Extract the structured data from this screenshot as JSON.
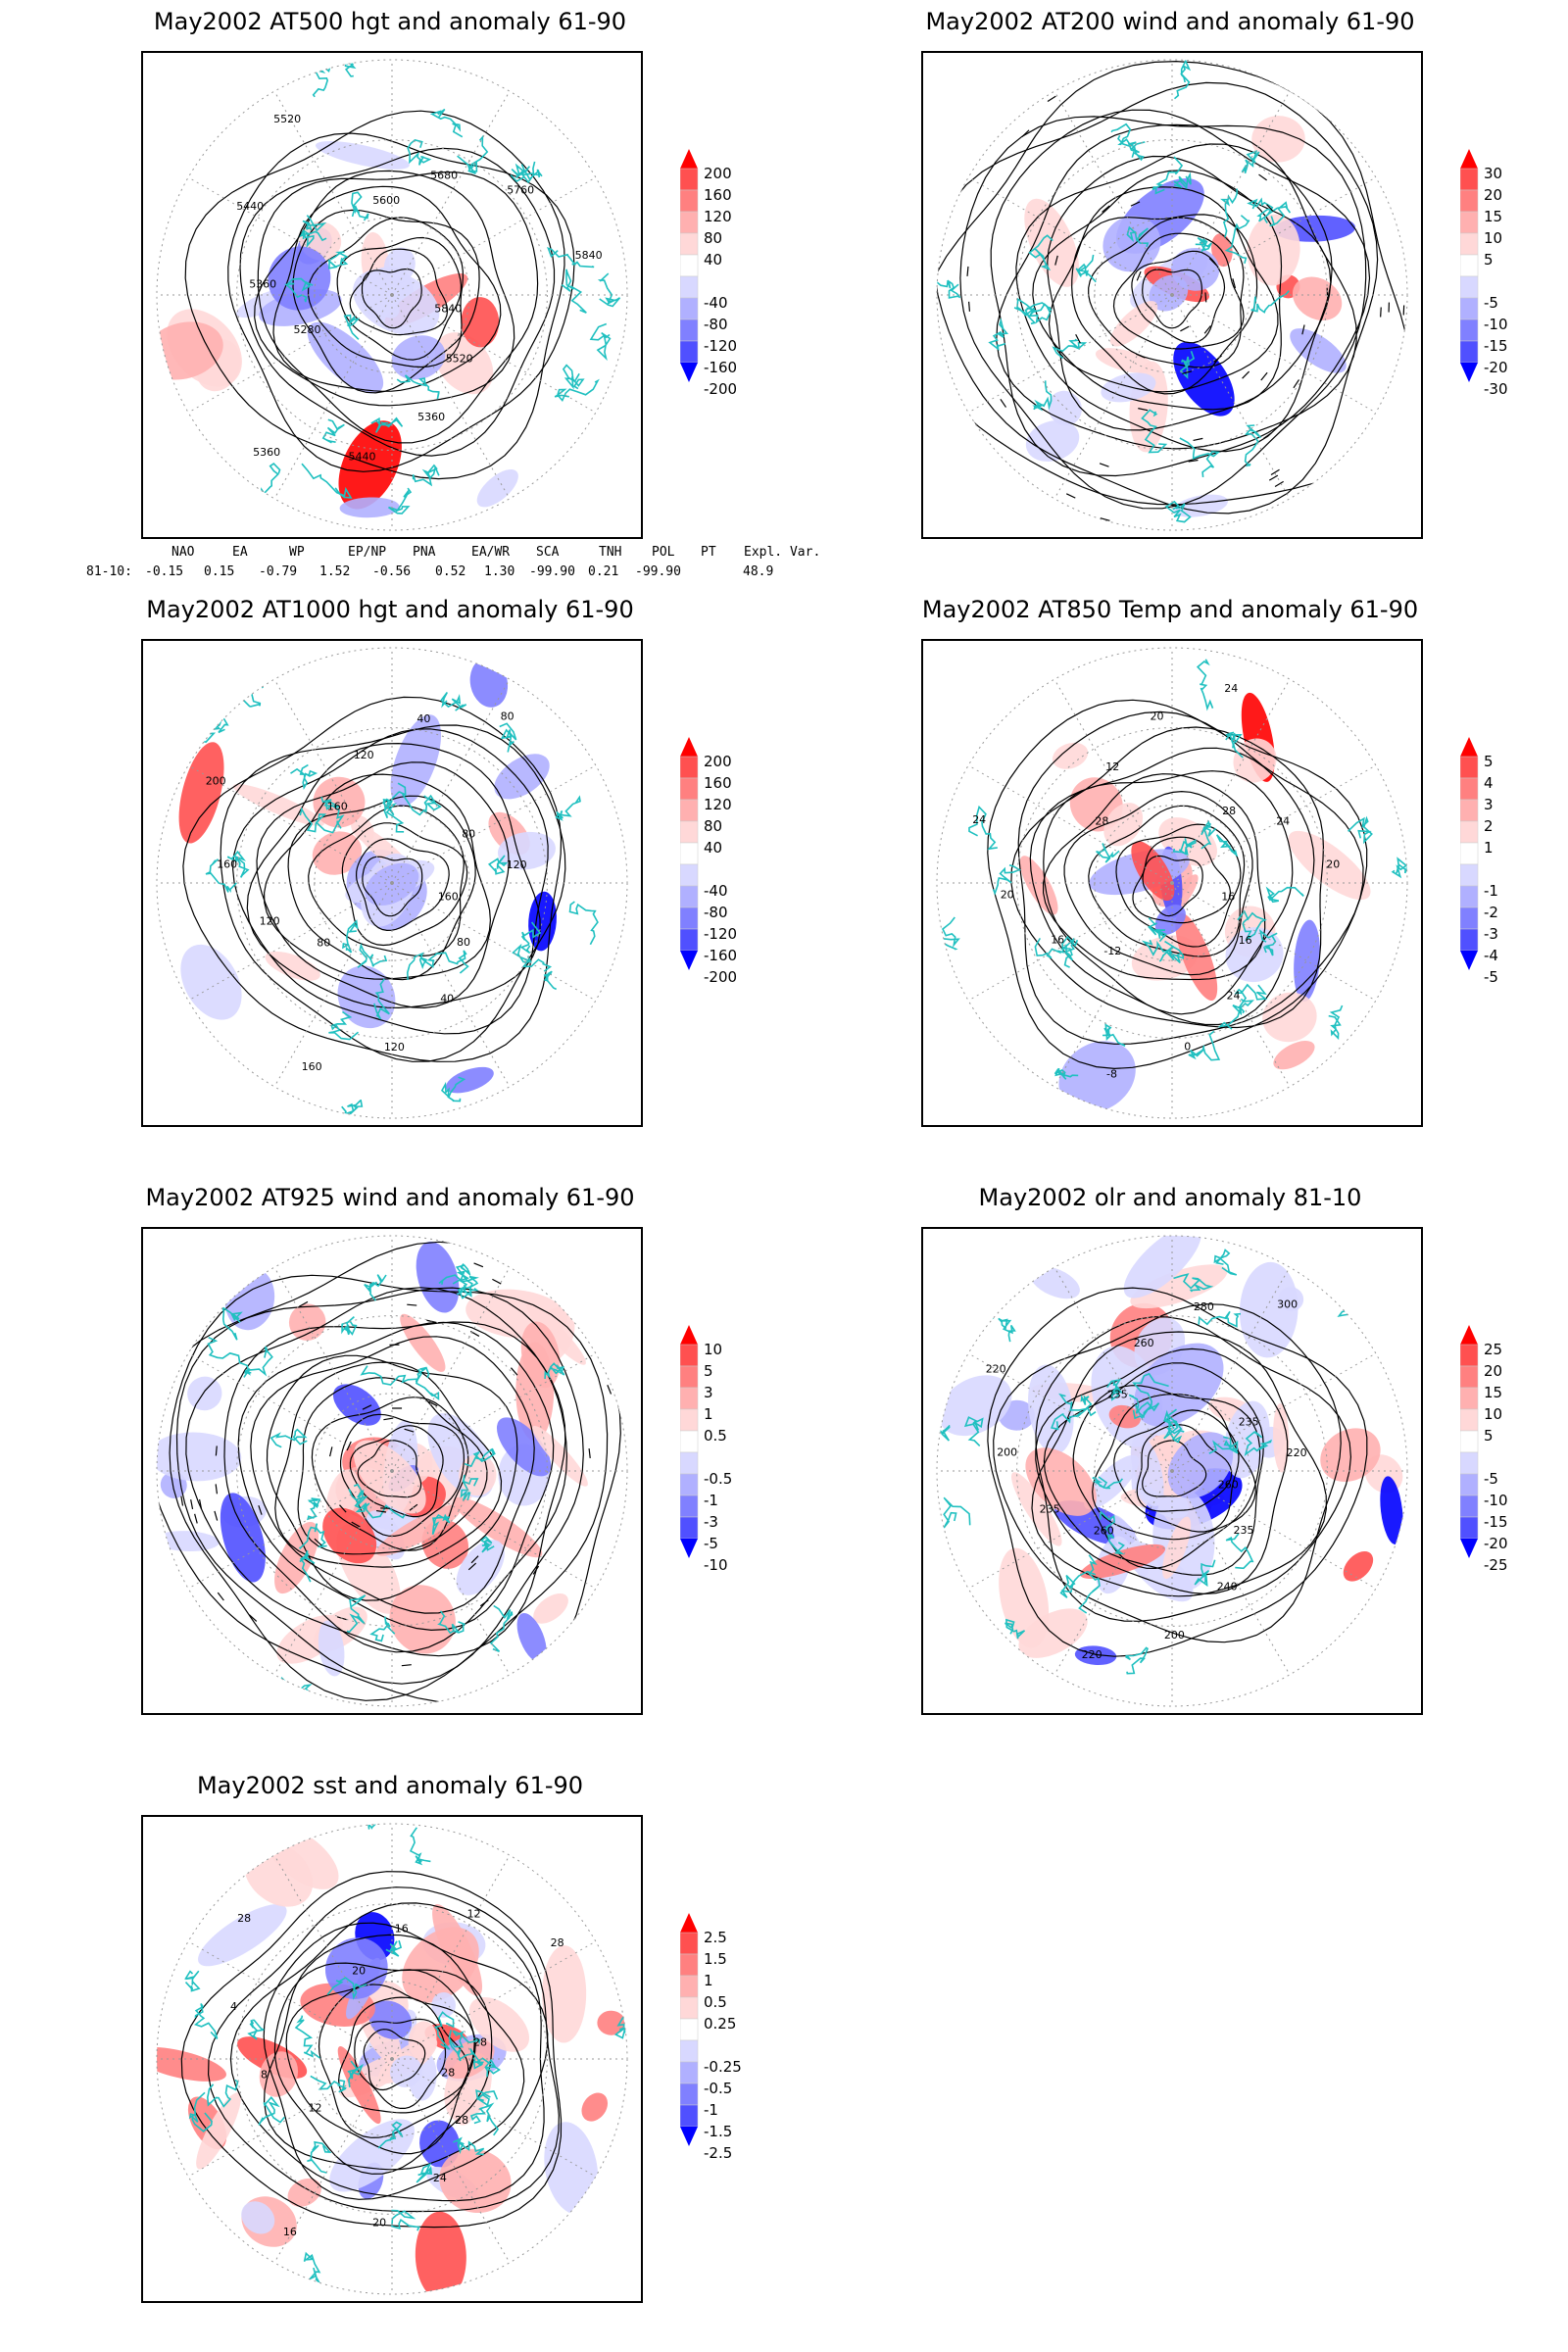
{
  "panels": [
    {
      "id": "at500",
      "title": "May2002 AT500 hgt and anomaly 61-90",
      "colorbar": [
        "200",
        "160",
        "120",
        "80",
        "40",
        "-40",
        "-80",
        "-120",
        "-160",
        "-200"
      ],
      "contour_labels": [
        "5840",
        "5520",
        "5360",
        "5440",
        "5360",
        "5280",
        "5360",
        "5440",
        "5520",
        "5600",
        "5680",
        "5760",
        "5840"
      ]
    },
    {
      "id": "at200",
      "title": "May2002 AT200 wind and anomaly 61-90",
      "colorbar": [
        "30",
        "20",
        "15",
        "10",
        "5",
        "-5",
        "-10",
        "-15",
        "-20",
        "-30"
      ],
      "contour_labels": []
    },
    {
      "id": "at1000",
      "title": "May2002 AT1000 hgt and anomaly 61-90",
      "colorbar": [
        "200",
        "160",
        "120",
        "80",
        "40",
        "-40",
        "-80",
        "-120",
        "-160",
        "-200"
      ],
      "contour_labels": [
        "160",
        "80",
        "40",
        "120",
        "160",
        "80",
        "120",
        "160",
        "200",
        "160",
        "120",
        "40",
        "80",
        "80",
        "120"
      ]
    },
    {
      "id": "at850",
      "title": "May2002 AT850 Temp and anomaly 61-90",
      "colorbar": [
        "5",
        "4",
        "3",
        "2",
        "1",
        "-1",
        "-2",
        "-3",
        "-4",
        "-5"
      ],
      "contour_labels": [
        "16",
        "16",
        "24",
        "0",
        "-8",
        "-12",
        "16",
        "20",
        "24",
        "28",
        "12",
        "20",
        "24",
        "28",
        "24",
        "20"
      ]
    },
    {
      "id": "at925",
      "title": "May2002 AT925 wind and anomaly 61-90",
      "colorbar": [
        "10",
        "5",
        "3",
        "1",
        "0.5",
        "-0.5",
        "-1",
        "-3",
        "-5",
        "-10"
      ],
      "contour_labels": []
    },
    {
      "id": "olr",
      "title": "May2002 olr and anomaly 81-10",
      "colorbar": [
        "25",
        "20",
        "15",
        "10",
        "5",
        "-5",
        "-10",
        "-15",
        "-20",
        "-25"
      ],
      "contour_labels": [
        "260",
        "235",
        "240",
        "200",
        "220",
        "260",
        "235",
        "200",
        "220",
        "235",
        "260",
        "280",
        "300",
        "235",
        "220"
      ]
    },
    {
      "id": "sst",
      "title": "May2002 sst and anomaly 61-90",
      "colorbar": [
        "2.5",
        "1.5",
        "1",
        "0.5",
        "0.25",
        "-0.25",
        "-0.5",
        "-1",
        "-1.5",
        "-2.5"
      ],
      "contour_labels": [
        "28",
        "28",
        "24",
        "20",
        "16",
        "12",
        "8",
        "4",
        "28",
        "20",
        "16",
        "12",
        "28",
        "28"
      ]
    }
  ],
  "teleconnection": {
    "headers": [
      "NAO",
      "EA",
      "WP",
      "EP/NP",
      "PNA",
      "EA/WR",
      "SCA",
      "TNH",
      "POL",
      "PT",
      "Expl. Var."
    ],
    "row_label": "81-10:",
    "values": [
      "-0.15",
      "0.15",
      "-0.79",
      "1.52",
      "-0.56",
      "0.52",
      "1.30",
      "-99.90",
      "0.21",
      "-99.90",
      "48.9"
    ]
  },
  "colors": {
    "positive": [
      "#ff0000",
      "#ff5050",
      "#ff8080",
      "#ffb0b0",
      "#ffd8d8"
    ],
    "negative": [
      "#d8d8ff",
      "#b0b0ff",
      "#8080ff",
      "#5050ff",
      "#0000ff"
    ],
    "coastline": "#20c0c0"
  }
}
